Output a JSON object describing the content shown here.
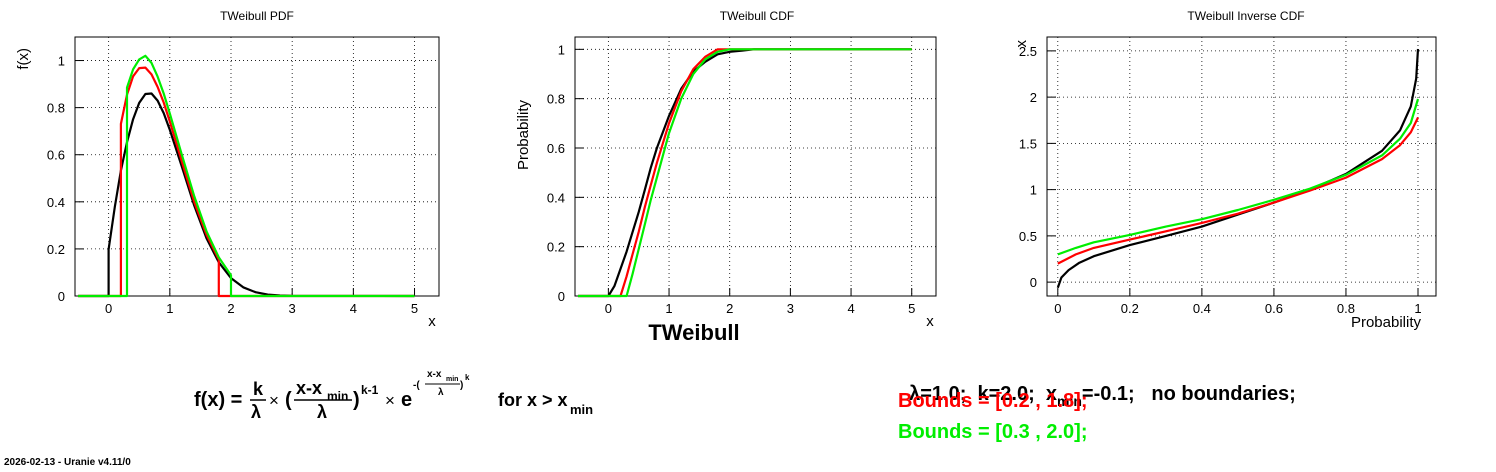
{
  "colors": {
    "default": "#000000",
    "bounded_1": "#ff0000",
    "bounded_2": "#00ee00"
  },
  "chart_data": [
    {
      "type": "line",
      "title": "TWeibull PDF",
      "xlabel": "x",
      "ylabel": "f(x)",
      "xlim": [
        -0.55,
        5.4
      ],
      "ylim": [
        0,
        1.1
      ],
      "xticks": [
        0,
        1,
        2,
        3,
        4,
        5
      ],
      "yticks": [
        0,
        0.2,
        0.4,
        0.6,
        0.8,
        1
      ],
      "xtick_labels": [
        "0",
        "1",
        "2",
        "3",
        "4",
        "5"
      ],
      "ytick_labels": [
        "0",
        "0.2",
        "0.4",
        "0.6",
        "0.8",
        "1"
      ],
      "grid": true,
      "series": [
        {
          "color": "#000000",
          "x": [
            -0.5,
            0.0,
            0.0,
            0.1,
            0.2,
            0.3,
            0.4,
            0.5,
            0.6,
            0.7,
            0.8,
            0.9,
            1.0,
            1.2,
            1.4,
            1.6,
            1.8,
            2.0,
            2.2,
            2.4,
            2.6,
            2.8,
            3.0,
            5.0
          ],
          "y": [
            0,
            0,
            0.198,
            0.378,
            0.533,
            0.653,
            0.751,
            0.82,
            0.858,
            0.86,
            0.83,
            0.777,
            0.706,
            0.546,
            0.383,
            0.245,
            0.143,
            0.076,
            0.037,
            0.016,
            0.006,
            0.002,
            0.001,
            0
          ]
        },
        {
          "color": "#ff0000",
          "x": [
            -0.5,
            0.2,
            0.2,
            0.3,
            0.4,
            0.5,
            0.6,
            0.7,
            0.8,
            0.9,
            1.0,
            1.2,
            1.4,
            1.6,
            1.8,
            1.8,
            5.0
          ],
          "y": [
            0,
            0,
            0.731,
            0.855,
            0.933,
            0.968,
            0.97,
            0.941,
            0.888,
            0.822,
            0.741,
            0.568,
            0.399,
            0.26,
            0.155,
            0,
            0
          ]
        },
        {
          "color": "#00ee00",
          "x": [
            -0.5,
            0.3,
            0.3,
            0.4,
            0.5,
            0.6,
            0.7,
            0.8,
            0.9,
            1.0,
            1.2,
            1.4,
            1.6,
            1.8,
            2.0,
            2.0,
            5.0
          ],
          "y": [
            0,
            0,
            0.885,
            0.963,
            1.005,
            1.02,
            0.99,
            0.932,
            0.86,
            0.775,
            0.596,
            0.423,
            0.275,
            0.164,
            0.088,
            0,
            0
          ]
        }
      ]
    },
    {
      "type": "line",
      "title": "TWeibull CDF",
      "xlabel": "x",
      "ylabel": "Probability",
      "xlim": [
        -0.55,
        5.4
      ],
      "ylim": [
        0,
        1.05
      ],
      "xticks": [
        0,
        1,
        2,
        3,
        4,
        5
      ],
      "yticks": [
        0,
        0.2,
        0.4,
        0.6,
        0.8,
        1
      ],
      "xtick_labels": [
        "0",
        "1",
        "2",
        "3",
        "4",
        "5"
      ],
      "ytick_labels": [
        "0",
        "0.2",
        "0.4",
        "0.6",
        "0.8",
        "1"
      ],
      "grid": true,
      "series": [
        {
          "color": "#000000",
          "x": [
            -0.5,
            0.0,
            0.1,
            0.2,
            0.3,
            0.4,
            0.5,
            0.6,
            0.7,
            0.8,
            1.0,
            1.2,
            1.4,
            1.6,
            1.8,
            2.0,
            2.2,
            2.4,
            5.0
          ],
          "y": [
            0,
            0.0,
            0.04,
            0.11,
            0.18,
            0.26,
            0.34,
            0.43,
            0.52,
            0.6,
            0.73,
            0.84,
            0.91,
            0.95,
            0.98,
            0.99,
            0.995,
            1.0,
            1.0
          ]
        },
        {
          "color": "#ff0000",
          "x": [
            -0.5,
            0.2,
            0.3,
            0.4,
            0.5,
            0.6,
            0.7,
            0.8,
            1.0,
            1.2,
            1.4,
            1.6,
            1.8,
            5.0
          ],
          "y": [
            0,
            0.0,
            0.08,
            0.17,
            0.26,
            0.36,
            0.45,
            0.54,
            0.7,
            0.83,
            0.92,
            0.97,
            1.0,
            1.0
          ]
        },
        {
          "color": "#00ee00",
          "x": [
            -0.5,
            0.3,
            0.4,
            0.5,
            0.6,
            0.7,
            0.8,
            1.0,
            1.2,
            1.4,
            1.6,
            1.8,
            2.0,
            5.0
          ],
          "y": [
            0,
            0.0,
            0.09,
            0.19,
            0.29,
            0.39,
            0.48,
            0.66,
            0.8,
            0.9,
            0.96,
            0.99,
            1.0,
            1.0
          ]
        }
      ]
    },
    {
      "type": "line",
      "title": "TWeibull Inverse CDF",
      "xlabel": "Probability",
      "ylabel": "x",
      "xlim": [
        -0.03,
        1.05
      ],
      "ylim": [
        -0.15,
        2.65
      ],
      "xticks": [
        0,
        0.2,
        0.4,
        0.6,
        0.8,
        1
      ],
      "yticks": [
        0,
        0.5,
        1,
        1.5,
        2,
        2.5
      ],
      "xtick_labels": [
        "0",
        "0.2",
        "0.4",
        "0.6",
        "0.8",
        "1"
      ],
      "ytick_labels": [
        "0",
        "0.5",
        "1",
        "1.5",
        "2",
        "2.5"
      ],
      "grid": true,
      "series": [
        {
          "color": "#000000",
          "x": [
            0.0,
            0.01,
            0.03,
            0.06,
            0.1,
            0.2,
            0.3,
            0.4,
            0.5,
            0.6,
            0.7,
            0.8,
            0.9,
            0.95,
            0.98,
            0.995,
            1.0
          ],
          "y": [
            -0.06,
            0.05,
            0.13,
            0.21,
            0.28,
            0.4,
            0.5,
            0.6,
            0.73,
            0.86,
            1.0,
            1.17,
            1.42,
            1.64,
            1.9,
            2.2,
            2.52
          ]
        },
        {
          "color": "#ff0000",
          "x": [
            0.0,
            0.05,
            0.1,
            0.2,
            0.3,
            0.4,
            0.5,
            0.6,
            0.7,
            0.8,
            0.9,
            0.95,
            0.98,
            1.0
          ],
          "y": [
            0.2,
            0.3,
            0.37,
            0.46,
            0.55,
            0.64,
            0.74,
            0.86,
            0.99,
            1.13,
            1.33,
            1.48,
            1.62,
            1.78
          ]
        },
        {
          "color": "#00ee00",
          "x": [
            0.0,
            0.05,
            0.1,
            0.2,
            0.3,
            0.4,
            0.5,
            0.6,
            0.7,
            0.8,
            0.9,
            0.95,
            0.98,
            1.0
          ],
          "y": [
            0.3,
            0.37,
            0.43,
            0.51,
            0.6,
            0.68,
            0.78,
            0.89,
            1.01,
            1.16,
            1.37,
            1.55,
            1.72,
            1.98
          ]
        }
      ]
    }
  ],
  "bottom_title": "TWeibull",
  "legend_lines": [
    "λ=1.0;  k=2.0;  x",
    "min",
    "=-0.1;   no boundaries;",
    "Bounds = [0.2 , 1.8];",
    "Bounds = [0.3 , 2.0];"
  ],
  "formula": {
    "lhs": "f(x) =",
    "k": "k",
    "lambda": "λ",
    "times": "×",
    "open": "(",
    "num": "x-x",
    "min": "min",
    "close": ")",
    "pow": "k-1",
    "e": "e",
    "exp_prefix": "-(",
    "exp_num": "x-x",
    "exp_min": "min",
    "exp_close": ")",
    "exp_k": "k",
    "exp_lambda": "λ",
    "cond": "for x > x",
    "cond_min": "min"
  },
  "footer": "2026-02-13 - Uranie v4.11/0"
}
